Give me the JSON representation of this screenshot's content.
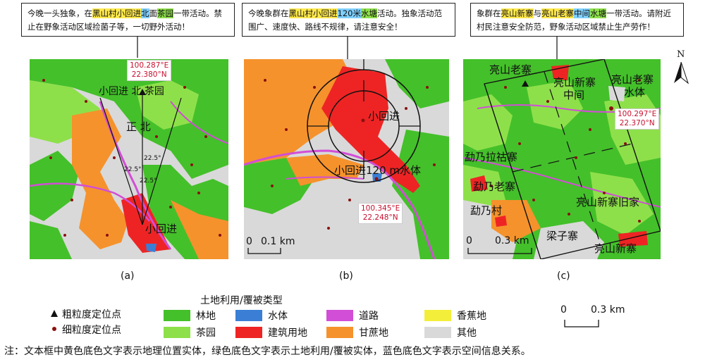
{
  "panels": [
    {
      "caption": "(a)",
      "notice_segments": [
        {
          "text": "今晚一头独象，在",
          "hl": ""
        },
        {
          "text": "黑山村小回进",
          "hl": "y"
        },
        {
          "text": "北",
          "hl": "b"
        },
        {
          "text": "面",
          "hl": ""
        },
        {
          "text": "茶园",
          "hl": "g"
        },
        {
          "text": "一带活动。禁止在野象活动区域捡菌子等，一切野外活动！",
          "hl": ""
        }
      ],
      "coord": [
        "100.287°E",
        "22.380°N"
      ],
      "labels": {
        "top": "小回进 北 茶园",
        "north": "正 北",
        "angle1": "22.5°",
        "angle2": "22.5°",
        "angle3": "22.5°",
        "place": "小回进"
      }
    },
    {
      "caption": "(b)",
      "notice_segments": [
        {
          "text": "今晚象群在",
          "hl": ""
        },
        {
          "text": "黑山村小回进",
          "hl": "y"
        },
        {
          "text": "120米",
          "hl": "b"
        },
        {
          "text": "水塘",
          "hl": "g"
        },
        {
          "text": "活动。独象活动范围广、速度快、路线不规律，请注意安全！",
          "hl": ""
        }
      ],
      "coord": [
        "100.345°E",
        "22.248°N"
      ],
      "labels": {
        "place": "小回进",
        "water": "小回进120 m水体"
      },
      "scale": {
        "zero": "0",
        "length": "0.1 km"
      }
    },
    {
      "caption": "(c)",
      "notice_segments": [
        {
          "text": "象群在",
          "hl": ""
        },
        {
          "text": "亮山新寨",
          "hl": "y"
        },
        {
          "text": "与",
          "hl": ""
        },
        {
          "text": "亮山老寨",
          "hl": "y"
        },
        {
          "text": "中间",
          "hl": "b"
        },
        {
          "text": "水塘",
          "hl": "g"
        },
        {
          "text": "一带活动。请附近村民注意安全防范，野象活动区域禁止生产劳作！",
          "hl": ""
        }
      ],
      "coord": [
        "100.297°E",
        "22.370°N"
      ],
      "labels": {
        "lsl": "亮山老寨",
        "lsxz": "亮山新寨",
        "mid": "中间",
        "lslw": "亮山老寨",
        "water": "水体",
        "mnlg": "勐乃拉祜寨",
        "mnl": "勐乃老寨",
        "mnc": "勐乃村",
        "lsxzj": "亮山新寨旧家",
        "lzz": "梁子寨",
        "lsxz2": "亮山新寨"
      },
      "scale": {
        "zero": "0",
        "length": "0.3 km"
      },
      "north": "N"
    }
  ],
  "legend": {
    "title": "土地利用/覆被类型",
    "points": [
      {
        "label": "粗粒度定位点",
        "symbol": "triangle"
      },
      {
        "label": "细粒度定位点",
        "symbol": "dot"
      }
    ],
    "classes": [
      {
        "label": "林地",
        "color": "#44c02a"
      },
      {
        "label": "水体",
        "color": "#3a7fd5"
      },
      {
        "label": "道路",
        "color": "#d24ed6"
      },
      {
        "label": "香蕉地",
        "color": "#f3ee3a"
      },
      {
        "label": "茶园",
        "color": "#8ee04a"
      },
      {
        "label": "建筑用地",
        "color": "#ee2424"
      },
      {
        "label": "甘蔗地",
        "color": "#f5922c"
      },
      {
        "label": "其他",
        "color": "#d9d9d9"
      }
    ],
    "scale": {
      "zero": "0",
      "length": "0.3 km"
    }
  },
  "footnote": "注：文本框中黄色底色文字表示地理位置实体，绿色底色文字表示土地利用/覆被实体，蓝色底色文字表示空间信息关系。"
}
